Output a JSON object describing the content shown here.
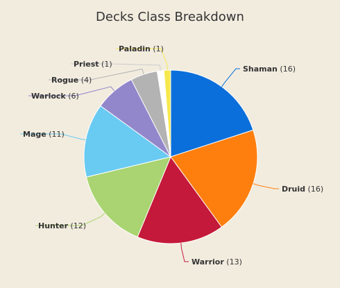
{
  "chart_data": {
    "type": "pie",
    "title": "Decks Class Breakdown",
    "start_angle_deg": 0,
    "direction": "clockwise",
    "slices": [
      {
        "name": "Shaman",
        "value": 16,
        "color": "#0b6fdb"
      },
      {
        "name": "Druid",
        "value": 16,
        "color": "#ff7f0e"
      },
      {
        "name": "Warrior",
        "value": 13,
        "color": "#c4193a"
      },
      {
        "name": "Hunter",
        "value": 12,
        "color": "#a9d471"
      },
      {
        "name": "Mage",
        "value": 11,
        "color": "#69caf2"
      },
      {
        "name": "Warlock",
        "value": 6,
        "color": "#9387cb"
      },
      {
        "name": "Rogue",
        "value": 4,
        "color": "#b3b3b3"
      },
      {
        "name": "Priest",
        "value": 1,
        "color": "#ffffff"
      },
      {
        "name": "Paladin",
        "value": 1,
        "color": "#f6e84c"
      }
    ]
  }
}
